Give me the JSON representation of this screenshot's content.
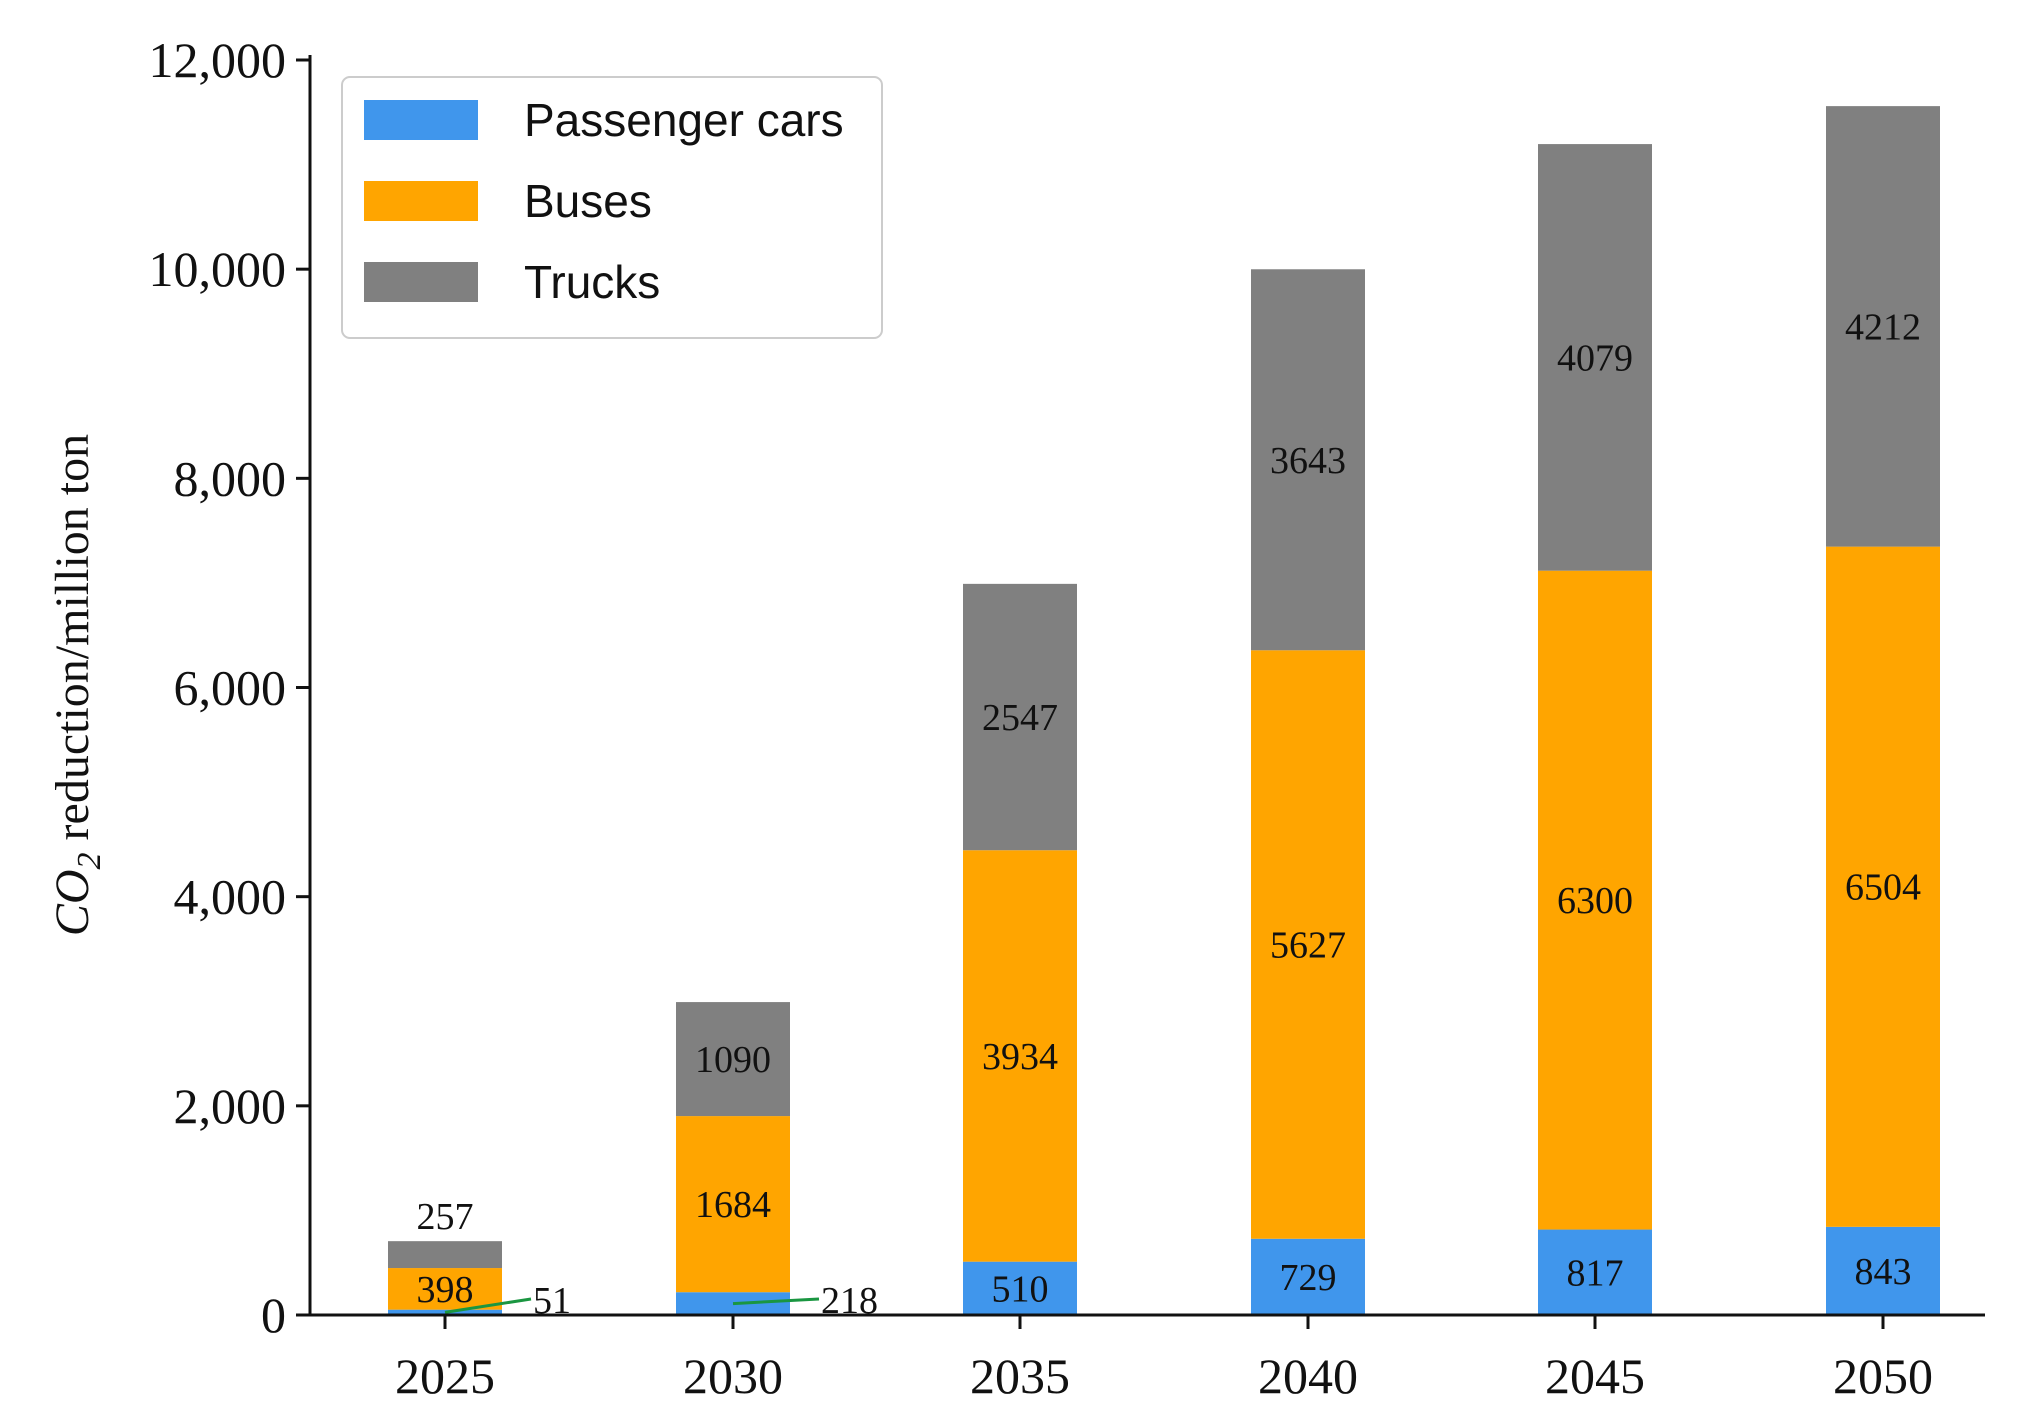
{
  "chart_data": {
    "type": "bar",
    "stacked": true,
    "categories": [
      "2025",
      "2030",
      "2035",
      "2040",
      "2045",
      "2050"
    ],
    "series": [
      {
        "name": "Passenger cars",
        "color": "#4096EC",
        "values": [
          51,
          218,
          510,
          729,
          817,
          843
        ]
      },
      {
        "name": "Buses",
        "color": "#FFA500",
        "values": [
          398,
          1684,
          3934,
          5627,
          6300,
          6504
        ]
      },
      {
        "name": "Trucks",
        "color": "#808080",
        "values": [
          257,
          1090,
          2547,
          3643,
          4079,
          4212
        ]
      }
    ],
    "ylim": [
      0,
      12000
    ],
    "yticks": [
      0,
      2000,
      4000,
      6000,
      8000,
      10000,
      12000
    ],
    "ytick_labels": [
      "0",
      "2,000",
      "4,000",
      "6,000",
      "8,000",
      "10,000",
      "12,000"
    ],
    "ylabel_main": "CO",
    "ylabel_sub": "2",
    "ylabel_rest": " reduction/million ton",
    "xlabel": "",
    "legend_position": "top-left",
    "annotation_color": "#1a9641"
  }
}
